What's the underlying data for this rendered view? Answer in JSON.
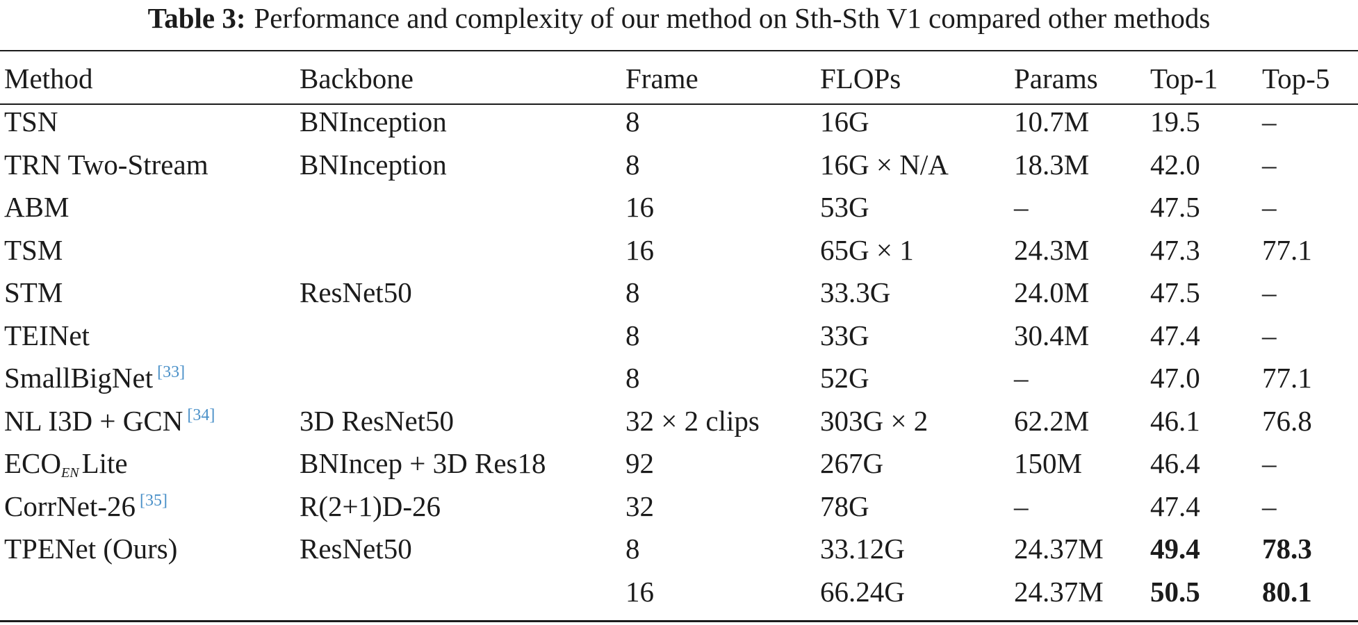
{
  "caption": {
    "label": "Table 3:",
    "text": "Performance and complexity of our method on Sth-Sth V1 compared other methods"
  },
  "header": {
    "method": "Method",
    "backbone": "Backbone",
    "frame": "Frame",
    "flops": "FLOPs",
    "params": "Params",
    "top1": "Top-1",
    "top5": "Top-5"
  },
  "rows": [
    {
      "method": "TSN",
      "method_sub": "",
      "method_suffix": "",
      "ref": "",
      "backbone": "BNInception",
      "frame": "8",
      "flops": "16G",
      "params": "10.7M",
      "top1": "19.5",
      "top5": "–"
    },
    {
      "method": "TRN Two-Stream",
      "method_sub": "",
      "method_suffix": "",
      "ref": "",
      "backbone": "BNInception",
      "frame": "8",
      "flops": "16G × N/A",
      "params": "18.3M",
      "top1": "42.0",
      "top5": "–"
    },
    {
      "method": "ABM",
      "method_sub": "",
      "method_suffix": "",
      "ref": "",
      "backbone": "",
      "frame": "16",
      "flops": "53G",
      "params": "–",
      "top1": "47.5",
      "top5": "–"
    },
    {
      "method": "TSM",
      "method_sub": "",
      "method_suffix": "",
      "ref": "",
      "backbone": "",
      "frame": "16",
      "flops": "65G × 1",
      "params": "24.3M",
      "top1": "47.3",
      "top5": "77.1"
    },
    {
      "method": "STM",
      "method_sub": "",
      "method_suffix": "",
      "ref": "",
      "backbone": "ResNet50",
      "frame": "8",
      "flops": "33.3G",
      "params": "24.0M",
      "top1": "47.5",
      "top5": "–"
    },
    {
      "method": "TEINet",
      "method_sub": "",
      "method_suffix": "",
      "ref": "",
      "backbone": "",
      "frame": "8",
      "flops": "33G",
      "params": "30.4M",
      "top1": "47.4",
      "top5": "–"
    },
    {
      "method": "SmallBigNet",
      "method_sub": "",
      "method_suffix": "",
      "ref": "[33]",
      "backbone": "",
      "frame": "8",
      "flops": "52G",
      "params": "–",
      "top1": "47.0",
      "top5": "77.1"
    },
    {
      "method": "NL I3D + GCN",
      "method_sub": "",
      "method_suffix": "",
      "ref": "[34]",
      "backbone": "3D ResNet50",
      "frame": "32 × 2 clips",
      "flops": "303G × 2",
      "params": "62.2M",
      "top1": "46.1",
      "top5": "76.8"
    },
    {
      "method": "ECO",
      "method_sub": "EN",
      "method_suffix": "Lite",
      "ref": "",
      "backbone": "BNIncep + 3D Res18",
      "frame": "92",
      "flops": "267G",
      "params": "150M",
      "top1": "46.4",
      "top5": "–"
    },
    {
      "method": "CorrNet-26",
      "method_sub": "",
      "method_suffix": "",
      "ref": "[35]",
      "backbone": "R(2+1)D-26",
      "frame": "32",
      "flops": "78G",
      "params": "–",
      "top1": "47.4",
      "top5": "–"
    },
    {
      "method": "TPENet (Ours)",
      "method_sub": "",
      "method_suffix": "",
      "ref": "",
      "backbone": "ResNet50",
      "frame": "8",
      "flops": "33.12G",
      "params": "24.37M",
      "top1": "49.4",
      "top5": "78.3",
      "bold": true
    },
    {
      "method": "",
      "method_sub": "",
      "method_suffix": "",
      "ref": "",
      "backbone": "",
      "frame": "16",
      "flops": "66.24G",
      "params": "24.37M",
      "top1": "50.5",
      "top5": "80.1",
      "bold": true
    }
  ]
}
